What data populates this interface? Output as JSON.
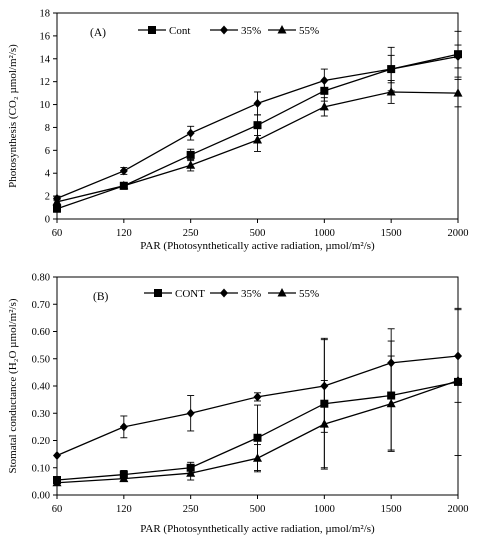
{
  "chart_data": [
    {
      "type": "line",
      "panel_label": "(A)",
      "x_categories": [
        "60",
        "120",
        "250",
        "500",
        "1000",
        "1500",
        "2000"
      ],
      "xlabel": "PAR (Photosynthetically active radiation, µmol/m²/s)",
      "ylabel": "Photosynthesis (CO₂ µmol/m²/s)",
      "ylim": [
        0,
        18
      ],
      "yticks": [
        "0",
        "2",
        "4",
        "6",
        "8",
        "10",
        "12",
        "14",
        "16",
        "18"
      ],
      "legend_position": "top",
      "series": [
        {
          "name": "Cont",
          "marker": "square",
          "values": [
            0.9,
            2.9,
            5.6,
            8.2,
            11.2,
            13.1,
            14.4
          ],
          "err": [
            0.3,
            0.3,
            0.5,
            0.9,
            0.9,
            1.9,
            2.0
          ]
        },
        {
          "name": "35%",
          "marker": "diamond",
          "values": [
            1.8,
            4.2,
            7.5,
            10.1,
            12.1,
            13.1,
            14.2
          ],
          "err": [
            0.2,
            0.3,
            0.6,
            1.0,
            1.0,
            1.2,
            1.0
          ]
        },
        {
          "name": "55%",
          "marker": "triangle",
          "values": [
            1.5,
            2.9,
            4.7,
            6.9,
            9.8,
            11.1,
            11.0
          ],
          "err": [
            0.2,
            0.2,
            0.5,
            1.0,
            0.8,
            1.0,
            1.2
          ]
        }
      ]
    },
    {
      "type": "line",
      "panel_label": "(B)",
      "x_categories": [
        "60",
        "120",
        "250",
        "500",
        "1000",
        "1500",
        "2000"
      ],
      "xlabel": "PAR (Photosynthetically active radiation, µmol/m²/s)",
      "ylabel": "Stomatal conductance (H₂O µmol/m²/s)",
      "ylim": [
        0,
        0.8
      ],
      "yticks": [
        "0.00",
        "0.10",
        "0.20",
        "0.30",
        "0.40",
        "0.50",
        "0.60",
        "0.70",
        "0.80"
      ],
      "legend_position": "top",
      "series": [
        {
          "name": "CONT",
          "marker": "square",
          "values": [
            0.055,
            0.075,
            0.1,
            0.21,
            0.335,
            0.365,
            0.415
          ],
          "err": [
            0.01,
            0.015,
            0.02,
            0.12,
            0.24,
            0.2,
            0.27
          ]
        },
        {
          "name": "35%",
          "marker": "diamond",
          "values": [
            0.145,
            0.25,
            0.3,
            0.36,
            0.4,
            0.485,
            0.51
          ],
          "err": [
            0.0,
            0.04,
            0.065,
            0.015,
            0.17,
            0.125,
            0.17
          ]
        },
        {
          "name": "55%",
          "marker": "triangle",
          "values": [
            0.045,
            0.06,
            0.08,
            0.135,
            0.26,
            0.335,
            0.42
          ],
          "err": [
            0.01,
            0.01,
            0.025,
            0.05,
            0.16,
            0.175,
            0.0
          ]
        }
      ]
    }
  ]
}
